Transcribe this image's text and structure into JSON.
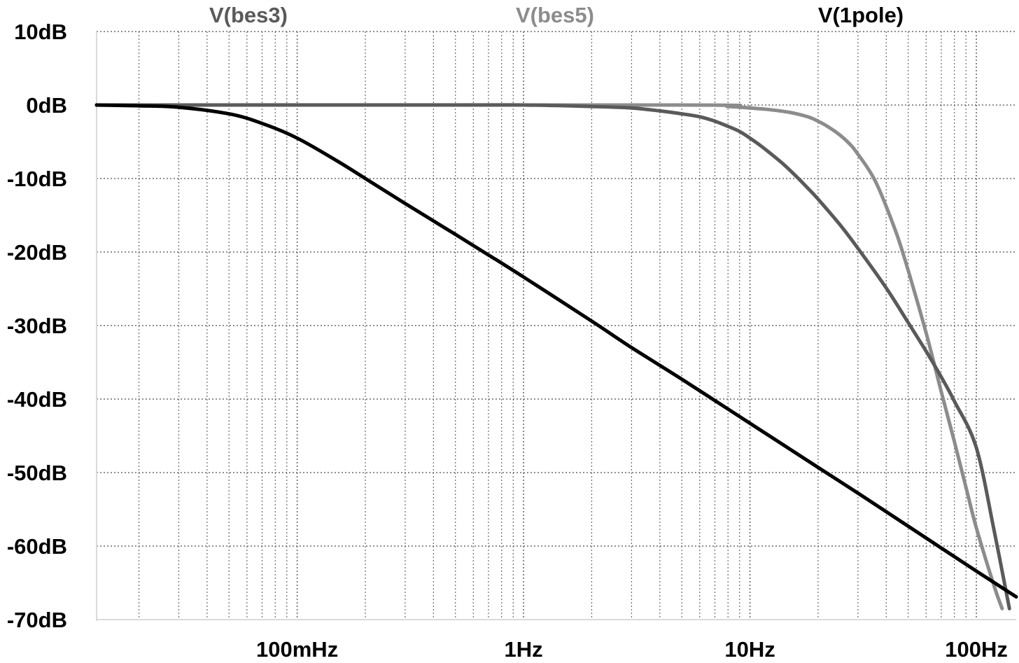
{
  "chart_data": {
    "type": "line",
    "title": "",
    "xlabel": "",
    "ylabel": "",
    "x_scale": "log",
    "xlim": [
      0.013,
      150
    ],
    "ylim": [
      -70,
      10
    ],
    "grid": true,
    "legend_position": "top",
    "x_ticks": [
      {
        "value": 0.1,
        "label": "100mHz"
      },
      {
        "value": 1,
        "label": "1Hz"
      },
      {
        "value": 10,
        "label": "10Hz"
      },
      {
        "value": 100,
        "label": "100Hz"
      }
    ],
    "y_ticks": [
      {
        "value": 10,
        "label": "10dB"
      },
      {
        "value": 0,
        "label": "0dB"
      },
      {
        "value": -10,
        "label": "-10dB"
      },
      {
        "value": -20,
        "label": "-20dB"
      },
      {
        "value": -30,
        "label": "-30dB"
      },
      {
        "value": -40,
        "label": "-40dB"
      },
      {
        "value": -50,
        "label": "-50dB"
      },
      {
        "value": -60,
        "label": "-60dB"
      },
      {
        "value": -70,
        "label": "-70dB"
      }
    ],
    "series": [
      {
        "name": "V(bes3)",
        "color": "#5a5a5a",
        "x": [
          0.013,
          0.5,
          1,
          2,
          3,
          4,
          5,
          6,
          7,
          8,
          9,
          10,
          11,
          12,
          14,
          16,
          18,
          20,
          25,
          30,
          40,
          50,
          60,
          70,
          80,
          100,
          120,
          140
        ],
        "y": [
          0,
          0,
          0,
          -0.2,
          -0.4,
          -0.8,
          -1.2,
          -1.6,
          -2.2,
          -2.9,
          -3.6,
          -4.5,
          -5.4,
          -6.3,
          -8,
          -9.7,
          -11.3,
          -12.8,
          -16.3,
          -19.5,
          -24.9,
          -29.6,
          -33.5,
          -37,
          -40.3,
          -46.6,
          -58,
          -68.5
        ]
      },
      {
        "name": "V(bes5)",
        "color": "#8c8c8c",
        "x": [
          0.013,
          5,
          8,
          10,
          12,
          15,
          18,
          20,
          22,
          25,
          28,
          30,
          33,
          36,
          40,
          45,
          50,
          60,
          70,
          80,
          90,
          100,
          120,
          130
        ],
        "y": [
          0,
          0,
          -0.2,
          -0.4,
          -0.6,
          -1,
          -1.6,
          -2.2,
          -2.9,
          -4.1,
          -5.5,
          -6.7,
          -8.5,
          -10.5,
          -13.8,
          -18,
          -22.5,
          -31,
          -39,
          -45.8,
          -52,
          -57.5,
          -65.5,
          -68.5
        ]
      },
      {
        "name": "V(1pole)",
        "color": "#000000",
        "x": [
          0.013,
          0.02,
          0.03,
          0.05,
          0.07,
          0.1,
          0.15,
          0.2,
          0.3,
          0.5,
          0.7,
          1,
          2,
          3,
          5,
          10,
          20,
          30,
          50,
          100,
          150
        ],
        "y": [
          0,
          -0.1,
          -0.3,
          -1.2,
          -2.5,
          -4.5,
          -7.6,
          -10,
          -13.4,
          -17.6,
          -20.4,
          -23.4,
          -29.4,
          -33,
          -37.3,
          -43.3,
          -49.3,
          -52.8,
          -57.3,
          -63.4,
          -66.9
        ]
      }
    ]
  }
}
